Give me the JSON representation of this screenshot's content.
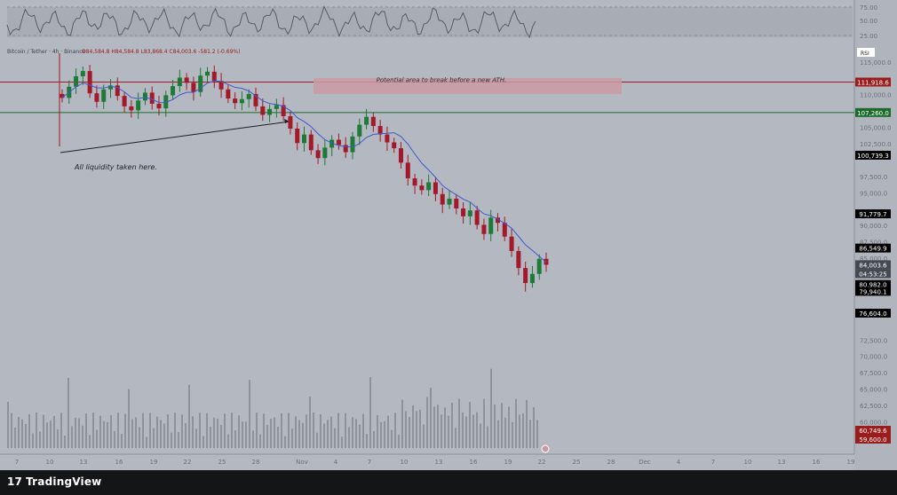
{
  "chart_data": {
    "type": "candlestick",
    "symbol_line": "Bitcoin / Tether · 4h · Binance",
    "ohlc_readout": {
      "o": "84,584.8",
      "h": "84,584.8",
      "l": "83,868.4",
      "c": "84,003.6",
      "change": "-581.2 (-0.69%)"
    },
    "rsi_label": "RSI",
    "rsi_ticks": [
      "75.00",
      "50.00",
      "25.00"
    ],
    "price_ticks": [
      "115,000.0",
      "110,000.0",
      "105,000.0",
      "102,500.0",
      "97,500.0",
      "95,000.0",
      "90,000.0",
      "87,500.0",
      "85,000.0",
      "72,500.0",
      "70,000.0",
      "67,500.0",
      "65,000.0",
      "62,500.0",
      "60,000.0"
    ],
    "price_labels": [
      {
        "value": "111,918.6",
        "color": "#9b1c1c"
      },
      {
        "value": "107,260.0",
        "color": "#1d6b2c"
      },
      {
        "value": "100,739.3",
        "color": "#000000"
      },
      {
        "value": "91,779.7",
        "color": "#000000"
      },
      {
        "value": "86,549.9",
        "color": "#000000"
      },
      {
        "value": "84,003.6",
        "color": "#454a52"
      },
      {
        "value": "04:53:25",
        "color": "#454a52"
      },
      {
        "value": "80,982.0",
        "color": "#000000"
      },
      {
        "value": "79,940.1",
        "color": "#000000"
      },
      {
        "value": "76,604.0",
        "color": "#000000"
      },
      {
        "value": "60,749.6",
        "color": "#9b1c1c"
      },
      {
        "value": "59,600.0",
        "color": "#9b1c1c"
      }
    ],
    "x_ticks": [
      "7",
      "10",
      "13",
      "16",
      "19",
      "22",
      "25",
      "28",
      "Nov",
      "4",
      "7",
      "10",
      "13",
      "16",
      "19",
      "22",
      "25",
      "28",
      "Dec",
      "4",
      "7",
      "10",
      "13",
      "16",
      "19"
    ],
    "annotations": {
      "zone_text": "Potential area to break before a new ATH.",
      "liquidity_text": "All liquidity taken here."
    },
    "levels": {
      "resistance": 111918.6,
      "support": 107260.0
    },
    "series_closes": [
      109500,
      111200,
      112800,
      113600,
      110200,
      108900,
      110800,
      111400,
      109800,
      108200,
      107600,
      109100,
      110300,
      108600,
      107900,
      109900,
      111300,
      112600,
      111800,
      110400,
      112900,
      113500,
      112100,
      110800,
      109400,
      108700,
      109300,
      110100,
      108200,
      106900,
      107800,
      108400,
      106700,
      104800,
      102600,
      103900,
      101500,
      100300,
      101900,
      103100,
      102300,
      101200,
      103600,
      105400,
      106600,
      105200,
      103900,
      102700,
      101800,
      99600,
      97200,
      96100,
      95400,
      96600,
      94800,
      93200,
      94100,
      92600,
      91400,
      92300,
      90100,
      88700,
      91200,
      90400,
      88300,
      86100,
      83500,
      81200,
      82600,
      84900,
      84003.6
    ]
  },
  "footer": {
    "brand": "TradingView"
  }
}
